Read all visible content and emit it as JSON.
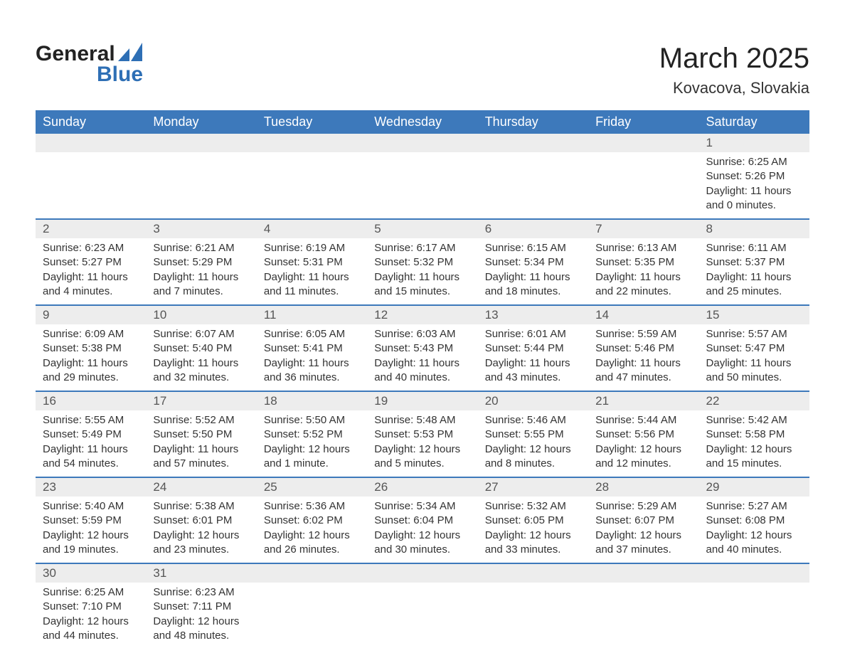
{
  "logo": {
    "word1": "General",
    "word2": "Blue",
    "icon_color": "#2e6fb5"
  },
  "title": "March 2025",
  "location": "Kovacova, Slovakia",
  "weekdays": [
    "Sunday",
    "Monday",
    "Tuesday",
    "Wednesday",
    "Thursday",
    "Friday",
    "Saturday"
  ],
  "colors": {
    "header_bg": "#3d79bb",
    "header_text": "#ffffff",
    "daynum_bg": "#ededed",
    "border": "#3d79bb",
    "text": "#333333"
  },
  "weeks": [
    [
      null,
      null,
      null,
      null,
      null,
      null,
      {
        "n": "1",
        "sr": "Sunrise: 6:25 AM",
        "ss": "Sunset: 5:26 PM",
        "d1": "Daylight: 11 hours",
        "d2": "and 0 minutes."
      }
    ],
    [
      {
        "n": "2",
        "sr": "Sunrise: 6:23 AM",
        "ss": "Sunset: 5:27 PM",
        "d1": "Daylight: 11 hours",
        "d2": "and 4 minutes."
      },
      {
        "n": "3",
        "sr": "Sunrise: 6:21 AM",
        "ss": "Sunset: 5:29 PM",
        "d1": "Daylight: 11 hours",
        "d2": "and 7 minutes."
      },
      {
        "n": "4",
        "sr": "Sunrise: 6:19 AM",
        "ss": "Sunset: 5:31 PM",
        "d1": "Daylight: 11 hours",
        "d2": "and 11 minutes."
      },
      {
        "n": "5",
        "sr": "Sunrise: 6:17 AM",
        "ss": "Sunset: 5:32 PM",
        "d1": "Daylight: 11 hours",
        "d2": "and 15 minutes."
      },
      {
        "n": "6",
        "sr": "Sunrise: 6:15 AM",
        "ss": "Sunset: 5:34 PM",
        "d1": "Daylight: 11 hours",
        "d2": "and 18 minutes."
      },
      {
        "n": "7",
        "sr": "Sunrise: 6:13 AM",
        "ss": "Sunset: 5:35 PM",
        "d1": "Daylight: 11 hours",
        "d2": "and 22 minutes."
      },
      {
        "n": "8",
        "sr": "Sunrise: 6:11 AM",
        "ss": "Sunset: 5:37 PM",
        "d1": "Daylight: 11 hours",
        "d2": "and 25 minutes."
      }
    ],
    [
      {
        "n": "9",
        "sr": "Sunrise: 6:09 AM",
        "ss": "Sunset: 5:38 PM",
        "d1": "Daylight: 11 hours",
        "d2": "and 29 minutes."
      },
      {
        "n": "10",
        "sr": "Sunrise: 6:07 AM",
        "ss": "Sunset: 5:40 PM",
        "d1": "Daylight: 11 hours",
        "d2": "and 32 minutes."
      },
      {
        "n": "11",
        "sr": "Sunrise: 6:05 AM",
        "ss": "Sunset: 5:41 PM",
        "d1": "Daylight: 11 hours",
        "d2": "and 36 minutes."
      },
      {
        "n": "12",
        "sr": "Sunrise: 6:03 AM",
        "ss": "Sunset: 5:43 PM",
        "d1": "Daylight: 11 hours",
        "d2": "and 40 minutes."
      },
      {
        "n": "13",
        "sr": "Sunrise: 6:01 AM",
        "ss": "Sunset: 5:44 PM",
        "d1": "Daylight: 11 hours",
        "d2": "and 43 minutes."
      },
      {
        "n": "14",
        "sr": "Sunrise: 5:59 AM",
        "ss": "Sunset: 5:46 PM",
        "d1": "Daylight: 11 hours",
        "d2": "and 47 minutes."
      },
      {
        "n": "15",
        "sr": "Sunrise: 5:57 AM",
        "ss": "Sunset: 5:47 PM",
        "d1": "Daylight: 11 hours",
        "d2": "and 50 minutes."
      }
    ],
    [
      {
        "n": "16",
        "sr": "Sunrise: 5:55 AM",
        "ss": "Sunset: 5:49 PM",
        "d1": "Daylight: 11 hours",
        "d2": "and 54 minutes."
      },
      {
        "n": "17",
        "sr": "Sunrise: 5:52 AM",
        "ss": "Sunset: 5:50 PM",
        "d1": "Daylight: 11 hours",
        "d2": "and 57 minutes."
      },
      {
        "n": "18",
        "sr": "Sunrise: 5:50 AM",
        "ss": "Sunset: 5:52 PM",
        "d1": "Daylight: 12 hours",
        "d2": "and 1 minute."
      },
      {
        "n": "19",
        "sr": "Sunrise: 5:48 AM",
        "ss": "Sunset: 5:53 PM",
        "d1": "Daylight: 12 hours",
        "d2": "and 5 minutes."
      },
      {
        "n": "20",
        "sr": "Sunrise: 5:46 AM",
        "ss": "Sunset: 5:55 PM",
        "d1": "Daylight: 12 hours",
        "d2": "and 8 minutes."
      },
      {
        "n": "21",
        "sr": "Sunrise: 5:44 AM",
        "ss": "Sunset: 5:56 PM",
        "d1": "Daylight: 12 hours",
        "d2": "and 12 minutes."
      },
      {
        "n": "22",
        "sr": "Sunrise: 5:42 AM",
        "ss": "Sunset: 5:58 PM",
        "d1": "Daylight: 12 hours",
        "d2": "and 15 minutes."
      }
    ],
    [
      {
        "n": "23",
        "sr": "Sunrise: 5:40 AM",
        "ss": "Sunset: 5:59 PM",
        "d1": "Daylight: 12 hours",
        "d2": "and 19 minutes."
      },
      {
        "n": "24",
        "sr": "Sunrise: 5:38 AM",
        "ss": "Sunset: 6:01 PM",
        "d1": "Daylight: 12 hours",
        "d2": "and 23 minutes."
      },
      {
        "n": "25",
        "sr": "Sunrise: 5:36 AM",
        "ss": "Sunset: 6:02 PM",
        "d1": "Daylight: 12 hours",
        "d2": "and 26 minutes."
      },
      {
        "n": "26",
        "sr": "Sunrise: 5:34 AM",
        "ss": "Sunset: 6:04 PM",
        "d1": "Daylight: 12 hours",
        "d2": "and 30 minutes."
      },
      {
        "n": "27",
        "sr": "Sunrise: 5:32 AM",
        "ss": "Sunset: 6:05 PM",
        "d1": "Daylight: 12 hours",
        "d2": "and 33 minutes."
      },
      {
        "n": "28",
        "sr": "Sunrise: 5:29 AM",
        "ss": "Sunset: 6:07 PM",
        "d1": "Daylight: 12 hours",
        "d2": "and 37 minutes."
      },
      {
        "n": "29",
        "sr": "Sunrise: 5:27 AM",
        "ss": "Sunset: 6:08 PM",
        "d1": "Daylight: 12 hours",
        "d2": "and 40 minutes."
      }
    ],
    [
      {
        "n": "30",
        "sr": "Sunrise: 6:25 AM",
        "ss": "Sunset: 7:10 PM",
        "d1": "Daylight: 12 hours",
        "d2": "and 44 minutes."
      },
      {
        "n": "31",
        "sr": "Sunrise: 6:23 AM",
        "ss": "Sunset: 7:11 PM",
        "d1": "Daylight: 12 hours",
        "d2": "and 48 minutes."
      },
      null,
      null,
      null,
      null,
      null
    ]
  ]
}
